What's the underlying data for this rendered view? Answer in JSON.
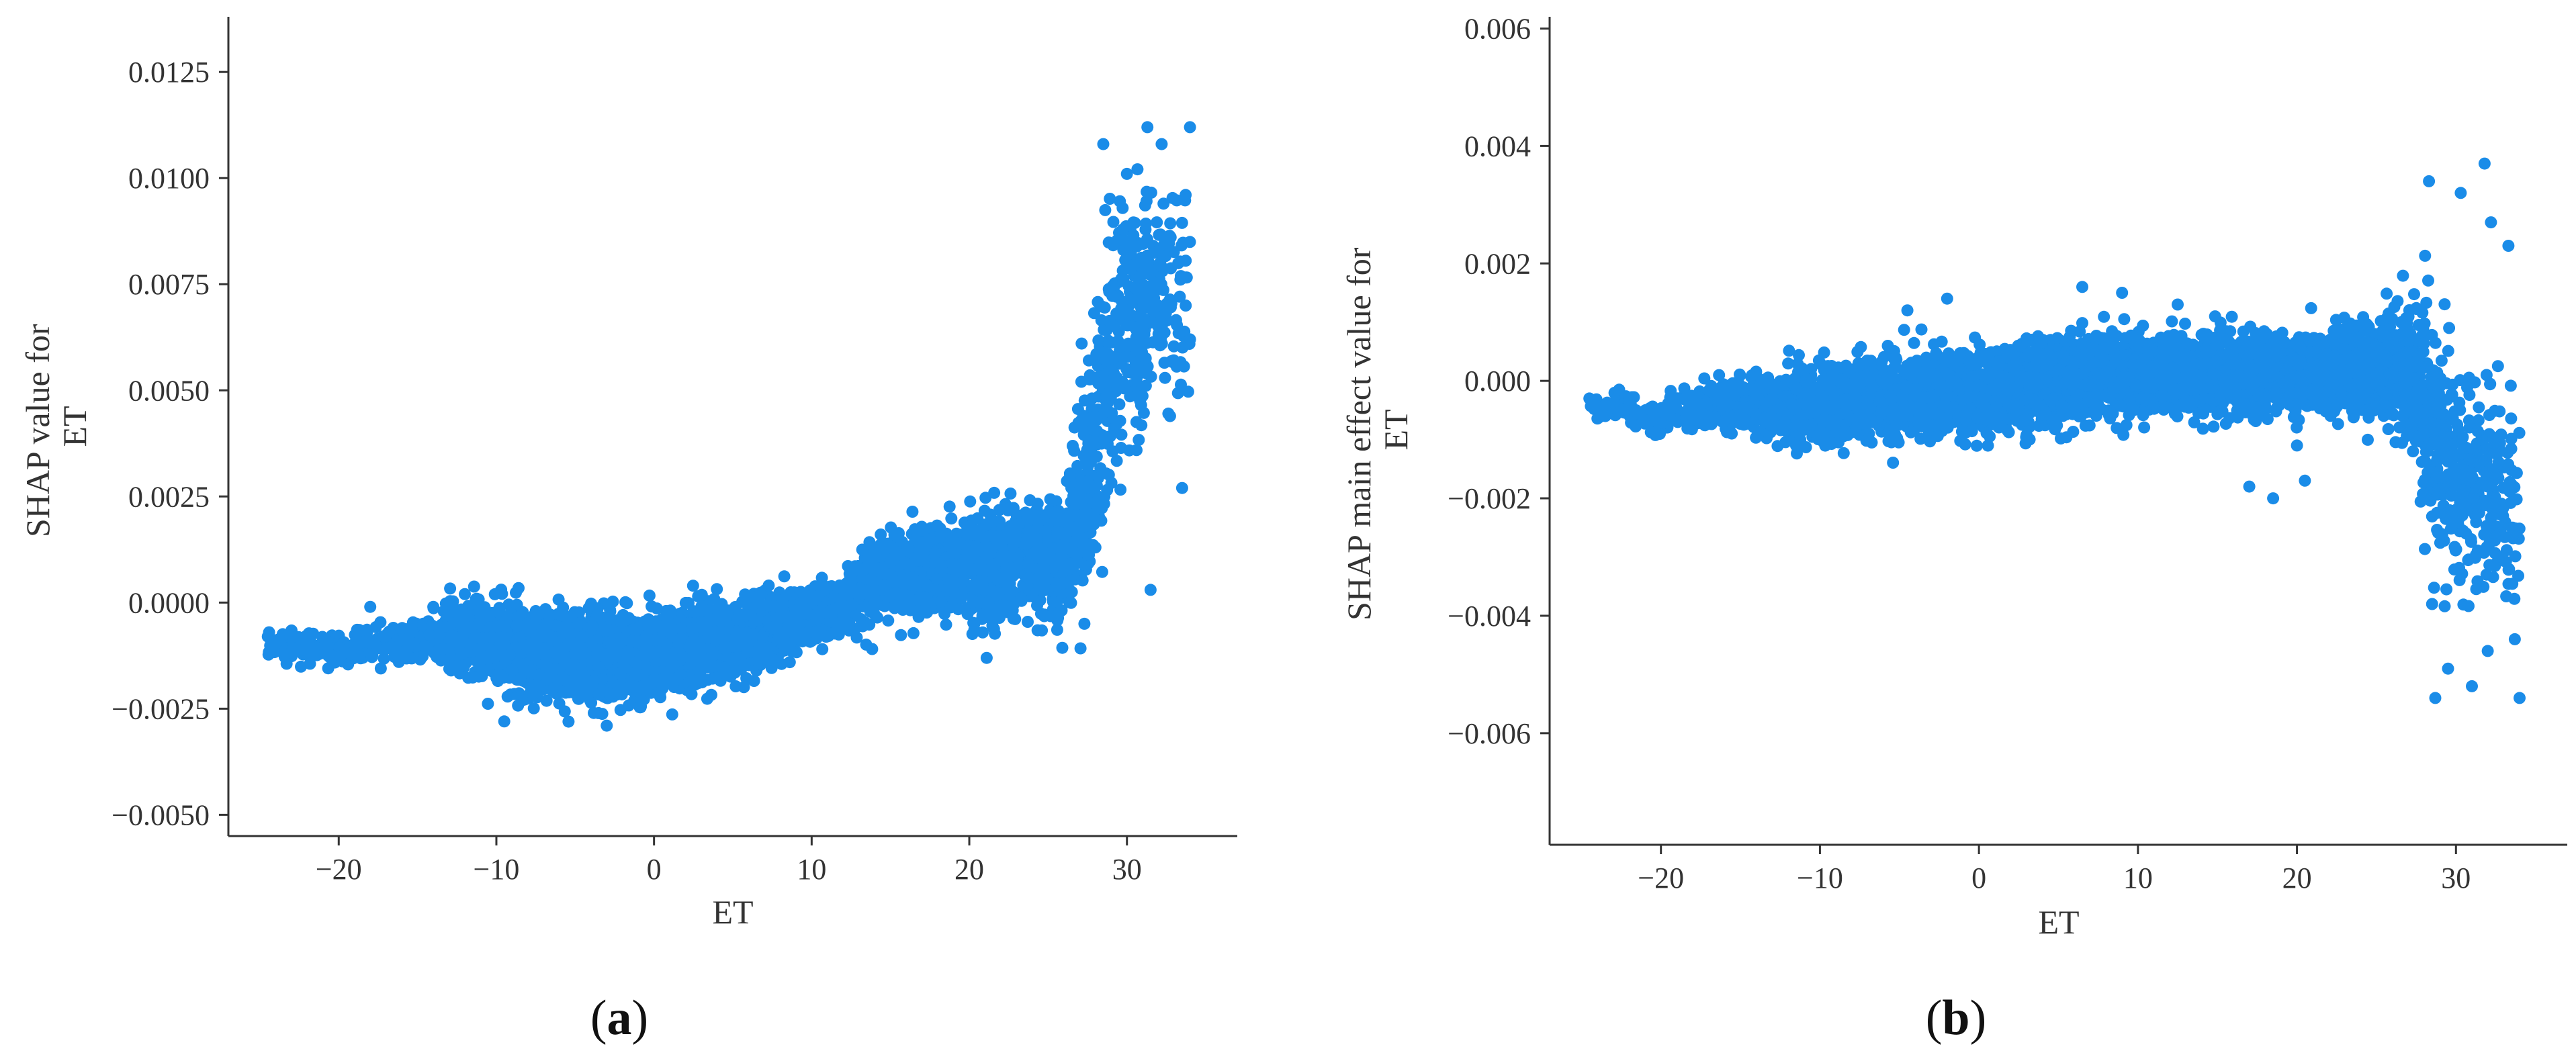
{
  "colors": {
    "points": "#1a8ce8",
    "axis": "#333333",
    "background": "#ffffff"
  },
  "chart_data": [
    {
      "type": "scatter",
      "panel": "a",
      "caption": {
        "open": "(",
        "letter": "a",
        "close": ")"
      },
      "title": "",
      "xlabel": "ET",
      "ylabel_lines": [
        "SHAP value for",
        "ET"
      ],
      "xlim": [
        -27,
        37
      ],
      "ylim": [
        -0.0055,
        0.0138
      ],
      "x_ticks": [
        -20,
        -10,
        0,
        10,
        20,
        30
      ],
      "x_tick_labels": [
        "−20",
        "−10",
        "0",
        "10",
        "20",
        "30"
      ],
      "y_ticks": [
        -0.005,
        -0.0025,
        0.0,
        0.0025,
        0.005,
        0.0075,
        0.01,
        0.0125
      ],
      "y_tick_labels": [
        "−0.0050",
        "−0.0025",
        "0.0000",
        "0.0025",
        "0.0050",
        "0.0075",
        "0.0100",
        "0.0125"
      ],
      "grid": false,
      "legend": "none",
      "series": [
        {
          "trend": [
            {
              "x": -24.5,
              "y": -0.001,
              "spread": 0.00025,
              "density": 0.3
            },
            {
              "x": -20,
              "y": -0.0011,
              "spread": 0.0003,
              "density": 0.4
            },
            {
              "x": -15,
              "y": -0.0009,
              "spread": 0.0004,
              "density": 0.6
            },
            {
              "x": -12,
              "y": -0.0008,
              "spread": 0.0008,
              "density": 1.0
            },
            {
              "x": -8,
              "y": -0.0012,
              "spread": 0.0009,
              "density": 1.6
            },
            {
              "x": -3,
              "y": -0.0013,
              "spread": 0.0009,
              "density": 2.0
            },
            {
              "x": 2,
              "y": -0.0011,
              "spread": 0.0008,
              "density": 2.0
            },
            {
              "x": 7,
              "y": -0.0007,
              "spread": 0.0007,
              "density": 1.6
            },
            {
              "x": 12,
              "y": 0.0,
              "spread": 0.0005,
              "density": 1.2
            },
            {
              "x": 14,
              "y": 0.0006,
              "spread": 0.0008,
              "density": 1.1
            },
            {
              "x": 20,
              "y": 0.0008,
              "spread": 0.0011,
              "density": 1.3
            },
            {
              "x": 26,
              "y": 0.0012,
              "spread": 0.0012,
              "density": 1.4
            },
            {
              "x": 27.5,
              "y": 0.003,
              "spread": 0.0024,
              "density": 1.6
            },
            {
              "x": 29,
              "y": 0.006,
              "spread": 0.0028,
              "density": 1.3
            },
            {
              "x": 32,
              "y": 0.0075,
              "spread": 0.0026,
              "density": 0.9
            },
            {
              "x": 34,
              "y": 0.007,
              "spread": 0.003,
              "density": 0.4
            }
          ],
          "outliers": [
            [
              -24.5,
              -0.0008
            ],
            [
              -23.5,
              -0.0012
            ],
            [
              -18,
              -0.0001
            ],
            [
              -14,
              -0.0001
            ],
            [
              -12,
              0.0002
            ],
            [
              -9.5,
              -0.0028
            ],
            [
              -7.5,
              -0.0002
            ],
            [
              -3,
              -0.0029
            ],
            [
              28.5,
              0.0108
            ],
            [
              30,
              0.0101
            ],
            [
              31.3,
              0.0112
            ],
            [
              32.2,
              0.0108
            ],
            [
              34,
              0.0112
            ],
            [
              34,
              0.0062
            ],
            [
              31.5,
              0.0003
            ],
            [
              33.5,
              0.0027
            ],
            [
              27.3,
              -0.0005
            ],
            [
              28,
              0.0013
            ]
          ]
        }
      ]
    },
    {
      "type": "scatter",
      "panel": "b",
      "caption": {
        "open": "(",
        "letter": "b",
        "close": ")"
      },
      "title": "",
      "xlabel": "ET",
      "ylabel_lines": [
        "SHAP main effect value for",
        "ET"
      ],
      "xlim": [
        -27,
        37
      ],
      "ylim": [
        -0.0079,
        0.0062
      ],
      "x_ticks": [
        -20,
        -10,
        0,
        10,
        20,
        30
      ],
      "x_tick_labels": [
        "−20",
        "−10",
        "0",
        "10",
        "20",
        "30"
      ],
      "y_ticks": [
        -0.006,
        -0.004,
        -0.002,
        0.0,
        0.002,
        0.004,
        0.006
      ],
      "y_tick_labels": [
        "−0.006",
        "−0.004",
        "−0.002",
        "0.000",
        "0.002",
        "0.004",
        "0.006"
      ],
      "grid": false,
      "legend": "none",
      "series": [
        {
          "trend": [
            {
              "x": -24.5,
              "y": -0.0004,
              "spread": 0.0002,
              "density": 0.3
            },
            {
              "x": -20,
              "y": -0.0006,
              "spread": 0.00025,
              "density": 0.5
            },
            {
              "x": -15,
              "y": -0.0004,
              "spread": 0.0004,
              "density": 0.8
            },
            {
              "x": -10,
              "y": -0.0004,
              "spread": 0.0006,
              "density": 1.6
            },
            {
              "x": -5,
              "y": -0.0003,
              "spread": 0.0006,
              "density": 2.0
            },
            {
              "x": 0,
              "y": -0.0002,
              "spread": 0.0006,
              "density": 2.0
            },
            {
              "x": 5,
              "y": 0.0,
              "spread": 0.0006,
              "density": 2.0
            },
            {
              "x": 10,
              "y": 0.0001,
              "spread": 0.0006,
              "density": 1.8
            },
            {
              "x": 15,
              "y": 0.0001,
              "spread": 0.0006,
              "density": 1.6
            },
            {
              "x": 20,
              "y": 0.0001,
              "spread": 0.0006,
              "density": 1.6
            },
            {
              "x": 25,
              "y": 0.0002,
              "spread": 0.0007,
              "density": 1.5
            },
            {
              "x": 27,
              "y": 0.0003,
              "spread": 0.0011,
              "density": 1.6
            },
            {
              "x": 28.5,
              "y": -0.001,
              "spread": 0.002,
              "density": 1.4
            },
            {
              "x": 30.5,
              "y": -0.0015,
              "spread": 0.0018,
              "density": 1.1
            },
            {
              "x": 32.5,
              "y": -0.002,
              "spread": 0.0016,
              "density": 0.9
            },
            {
              "x": 34,
              "y": -0.0025,
              "spread": 0.0014,
              "density": 0.5
            }
          ],
          "outliers": [
            [
              -24.5,
              -0.0003
            ],
            [
              -23.5,
              -0.0006
            ],
            [
              -22,
              -0.0004
            ],
            [
              -11.5,
              -0.0011
            ],
            [
              -4.5,
              0.0012
            ],
            [
              -2,
              0.0014
            ],
            [
              6.5,
              0.0016
            ],
            [
              9,
              0.0015
            ],
            [
              12.5,
              0.0013
            ],
            [
              17,
              -0.0018
            ],
            [
              18.5,
              -0.002
            ],
            [
              20.5,
              -0.0017
            ],
            [
              20,
              -0.0011
            ],
            [
              28.3,
              0.0034
            ],
            [
              30.3,
              0.0032
            ],
            [
              31.8,
              0.0037
            ],
            [
              33.3,
              0.0023
            ],
            [
              28.7,
              -0.0054
            ],
            [
              31,
              -0.0052
            ],
            [
              34,
              -0.0054
            ],
            [
              33.7,
              -0.0044
            ],
            [
              28.5,
              -0.0038
            ],
            [
              32,
              -0.0046
            ],
            [
              29.5,
              -0.0049
            ],
            [
              32.2,
              0.0027
            ],
            [
              27.3,
              -0.0012
            ]
          ]
        }
      ]
    }
  ]
}
